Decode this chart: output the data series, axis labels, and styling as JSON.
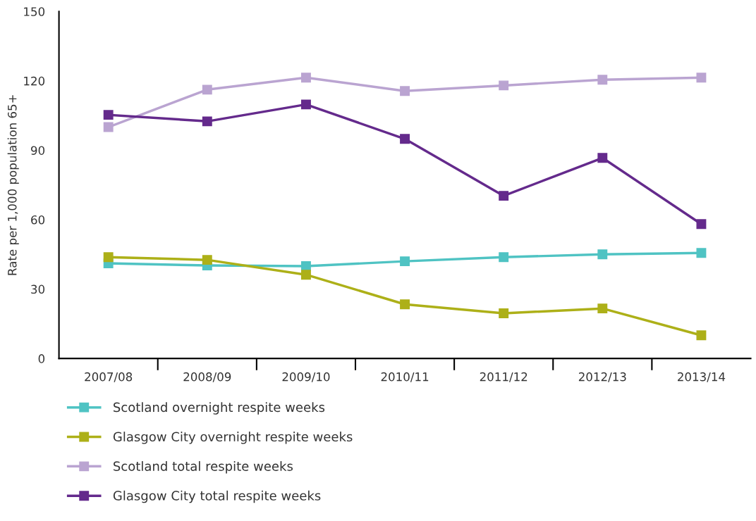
{
  "chart_data": {
    "type": "line",
    "ylabel": "Rate per 1,000 population 65+",
    "categories": [
      "2007/08",
      "2008/09",
      "2009/10",
      "2010/11",
      "2011/12",
      "2012/13",
      "2013/14"
    ],
    "series": [
      {
        "name": "Scotland overnight respite weeks",
        "color": "#4fc3c3",
        "values": [
          41.1,
          40.2,
          39.9,
          42,
          43.8,
          45,
          45.6
        ]
      },
      {
        "name": "Glasgow City overnight respite weeks",
        "color": "#adb018",
        "values": [
          43.8,
          42.6,
          36.2,
          23.4,
          19.5,
          21.6,
          10
        ]
      },
      {
        "name": "Scotland total respite weeks",
        "color": "#baa4d1",
        "values": [
          100,
          116.2,
          121.4,
          115.6,
          118,
          120.5,
          121.4
        ]
      },
      {
        "name": "Glasgow City total respite weeks",
        "color": "#642a8c",
        "values": [
          105.3,
          102.5,
          109.8,
          94.9,
          70.3,
          86.7,
          58.1
        ]
      }
    ],
    "ylim": [
      0,
      150
    ],
    "yticks": [
      0,
      30,
      60,
      90,
      120,
      150
    ],
    "grid": false,
    "legend": "bottom",
    "marker": "square",
    "line_style": "solid"
  }
}
